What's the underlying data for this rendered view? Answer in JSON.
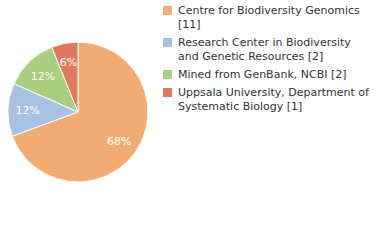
{
  "chart_data": {
    "type": "pie",
    "categories": [
      "Centre for Biodiversity Genomics [11]",
      "Research Center in Biodiversity and Genetic Resources [2]",
      "Mined from GenBank, NCBI [2]",
      "Uppsala University, Department of Systematic Biology [1]"
    ],
    "values": [
      68,
      12,
      12,
      6
    ],
    "value_labels": [
      "68%",
      "12%",
      "12%",
      "6%"
    ],
    "colors": [
      "#f2ab72",
      "#a8c0e2",
      "#aacd80",
      "#e07a5f"
    ],
    "data_labels": true,
    "legend": "right"
  }
}
